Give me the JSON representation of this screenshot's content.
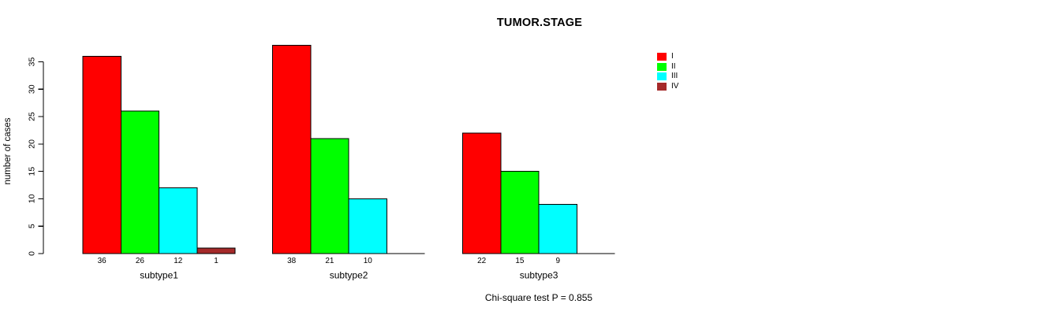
{
  "chart_data": {
    "type": "bar",
    "title": "TUMOR.STAGE",
    "ylabel": "number of cases",
    "xlabel": "",
    "ylim": [
      0,
      38
    ],
    "yticks": [
      0,
      5,
      10,
      15,
      20,
      25,
      30,
      35
    ],
    "grid": false,
    "legend_position": "top-right",
    "series": [
      {
        "name": "I",
        "color": "#ff0000"
      },
      {
        "name": "II",
        "color": "#00ff00"
      },
      {
        "name": "III",
        "color": "#00ffff"
      },
      {
        "name": "IV",
        "color": "#a52a2a"
      }
    ],
    "categories": [
      "subtype1",
      "subtype2",
      "subtype3"
    ],
    "groups": [
      {
        "label": "subtype1",
        "values": [
          36,
          26,
          12,
          1
        ]
      },
      {
        "label": "subtype2",
        "values": [
          38,
          21,
          10,
          0
        ]
      },
      {
        "label": "subtype3",
        "values": [
          22,
          15,
          9,
          0
        ]
      }
    ],
    "bar_value_labels_shown": true,
    "annotation": "Chi-square test P = 0.855",
    "colors": {
      "axis": "#000000",
      "bar_border": "#000000",
      "text": "#000000",
      "background": "#ffffff"
    }
  }
}
